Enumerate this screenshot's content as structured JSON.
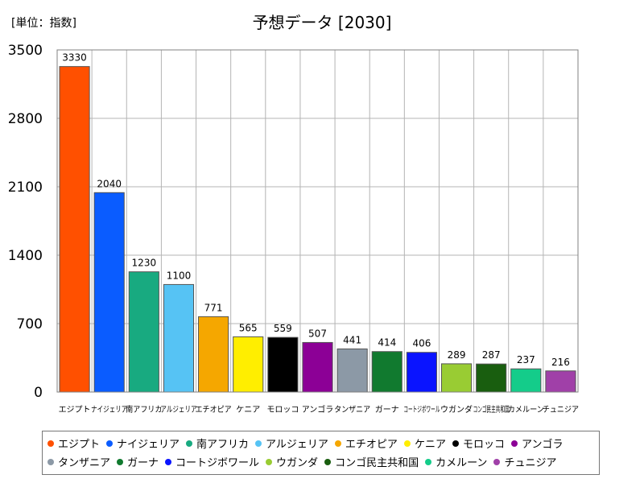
{
  "unit_label": "[単位：指数]",
  "chart_data": {
    "type": "bar",
    "title": "予想データ [2030]",
    "categories": [
      "エジプト",
      "ナイジェリア",
      "南アフリカ",
      "アルジェリア",
      "エチオピア",
      "ケニア",
      "モロッコ",
      "アンゴラ",
      "タンザニア",
      "ガーナ",
      "コートジボワール",
      "ウガンダ",
      "コンゴ民主共和国",
      "カメルーン",
      "チュニジア"
    ],
    "values": [
      3330,
      2040,
      1230,
      1100,
      771,
      565,
      559,
      507,
      441,
      414,
      406,
      289,
      287,
      237,
      216
    ],
    "colors": [
      "#ff5000",
      "#0a5cff",
      "#18aa80",
      "#56c3f4",
      "#f5a700",
      "#ffee00",
      "#000000",
      "#8c0096",
      "#8c99a6",
      "#117a2f",
      "#0a14ff",
      "#99cc33",
      "#195e0f",
      "#14cc8a",
      "#a040a8"
    ],
    "yticks": [
      0,
      700,
      1400,
      2100,
      2800,
      3500
    ],
    "ylim": [
      0,
      3500
    ],
    "xlabel": "",
    "ylabel": "",
    "grid": true,
    "legend_position": "bottom"
  }
}
